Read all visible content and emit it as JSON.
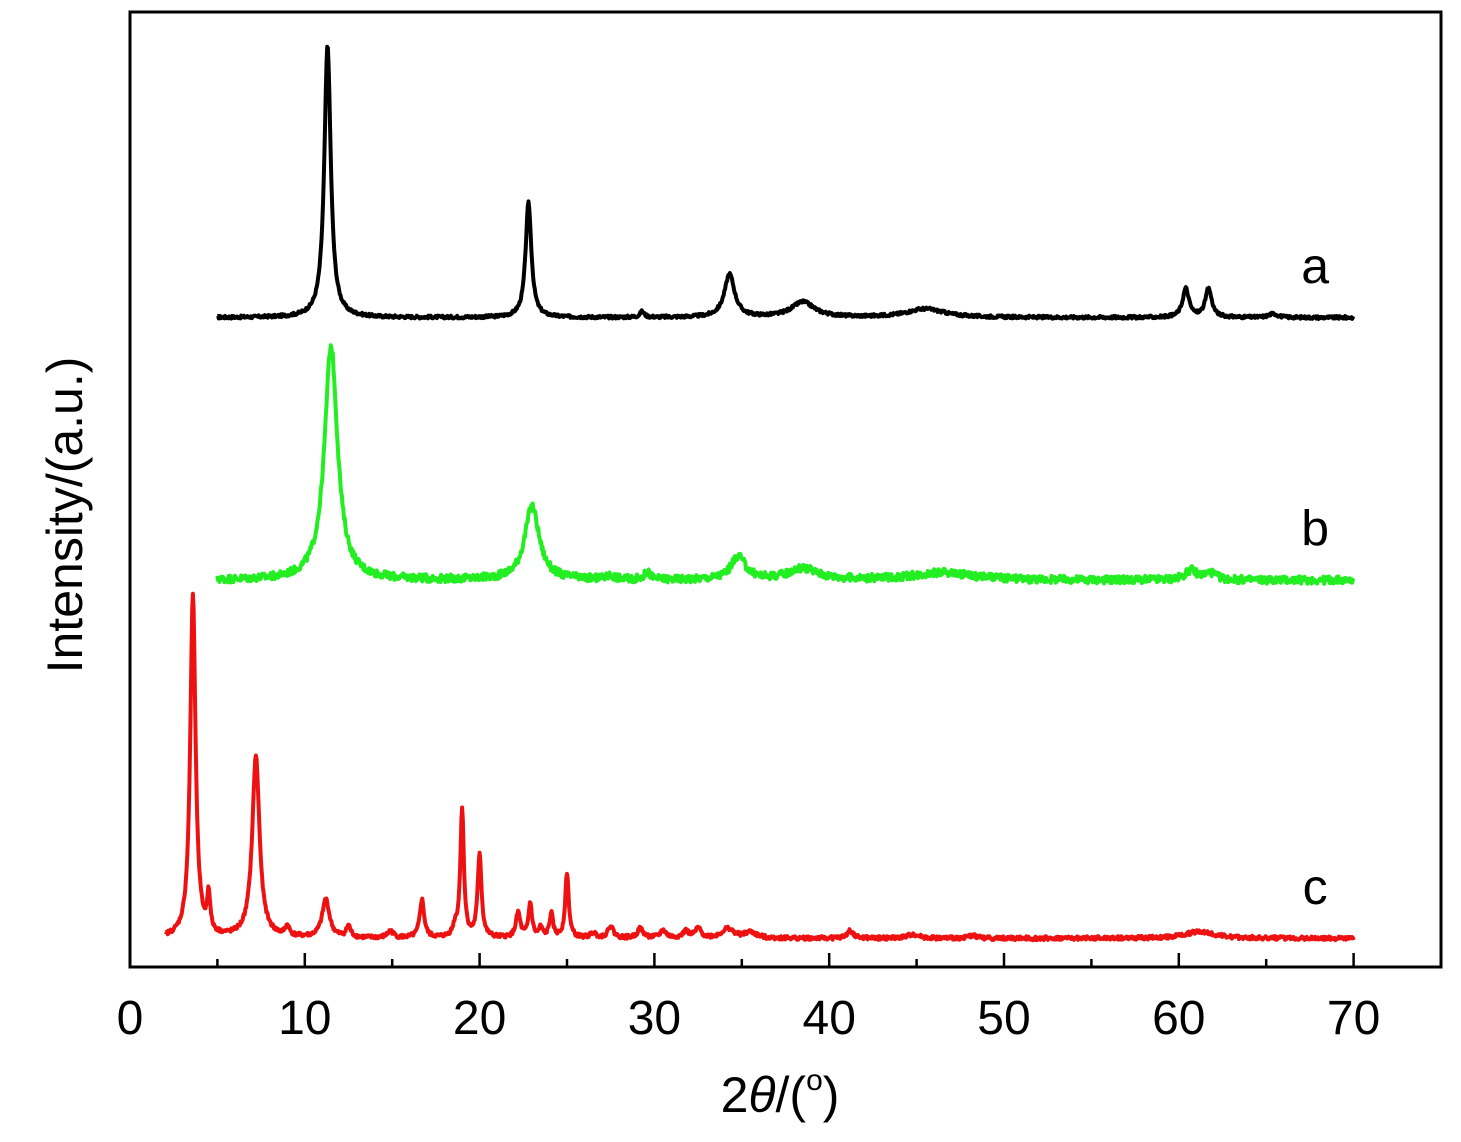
{
  "chart_data": {
    "type": "line",
    "xlabel_prefix": "2",
    "xlabel_symbol": "θ",
    "xlabel_suffix": "/(",
    "xlabel_unit": "o",
    "xlabel_close": ")",
    "ylabel": "Intensity/(a.u.)",
    "xlim": [
      0,
      75
    ],
    "x_ticks": [
      0,
      10,
      20,
      30,
      40,
      50,
      60,
      70
    ],
    "y_ticks_shown": false,
    "grid": false,
    "series": [
      {
        "name": "a",
        "color": "#000000",
        "x_range": [
          5,
          70
        ],
        "baseline": 0.68,
        "noise": 0.0015,
        "peaks": [
          {
            "x": 11.3,
            "h": 0.285,
            "w": 0.22
          },
          {
            "x": 22.8,
            "h": 0.12,
            "w": 0.2
          },
          {
            "x": 29.3,
            "h": 0.006,
            "w": 0.15
          },
          {
            "x": 34.3,
            "h": 0.045,
            "w": 0.35
          },
          {
            "x": 38.5,
            "h": 0.016,
            "w": 0.8
          },
          {
            "x": 45.5,
            "h": 0.009,
            "w": 1.3
          },
          {
            "x": 60.4,
            "h": 0.03,
            "w": 0.22
          },
          {
            "x": 61.7,
            "h": 0.03,
            "w": 0.22
          },
          {
            "x": 65.4,
            "h": 0.004,
            "w": 0.3
          }
        ]
      },
      {
        "name": "b",
        "color": "#22ee22",
        "x_range": [
          5,
          70
        ],
        "baseline": 0.405,
        "noise": 0.004,
        "peaks": [
          {
            "x": 11.5,
            "h": 0.245,
            "w": 0.45
          },
          {
            "x": 23.0,
            "h": 0.077,
            "w": 0.5
          },
          {
            "x": 27.5,
            "h": 0.004,
            "w": 0.3
          },
          {
            "x": 29.6,
            "h": 0.008,
            "w": 0.2
          },
          {
            "x": 34.8,
            "h": 0.024,
            "w": 0.5
          },
          {
            "x": 38.5,
            "h": 0.012,
            "w": 1.0
          },
          {
            "x": 46.5,
            "h": 0.008,
            "w": 2.0
          },
          {
            "x": 60.7,
            "h": 0.01,
            "w": 0.4
          },
          {
            "x": 61.8,
            "h": 0.007,
            "w": 0.4
          }
        ]
      },
      {
        "name": "c",
        "color": "#ee1111",
        "x_range": [
          2,
          70
        ],
        "baseline": 0.03,
        "noise": 0.002,
        "peaks": [
          {
            "x": 3.6,
            "h": 0.36,
            "w": 0.18
          },
          {
            "x": 4.5,
            "h": 0.04,
            "w": 0.1
          },
          {
            "x": 7.2,
            "h": 0.19,
            "w": 0.25
          },
          {
            "x": 9.0,
            "h": 0.01,
            "w": 0.15
          },
          {
            "x": 11.2,
            "h": 0.04,
            "w": 0.25
          },
          {
            "x": 12.5,
            "h": 0.012,
            "w": 0.15
          },
          {
            "x": 14.9,
            "h": 0.007,
            "w": 0.2
          },
          {
            "x": 16.7,
            "h": 0.04,
            "w": 0.15
          },
          {
            "x": 18.6,
            "h": 0.01,
            "w": 0.15
          },
          {
            "x": 19.0,
            "h": 0.135,
            "w": 0.12
          },
          {
            "x": 20.0,
            "h": 0.088,
            "w": 0.13
          },
          {
            "x": 22.2,
            "h": 0.026,
            "w": 0.15
          },
          {
            "x": 22.9,
            "h": 0.036,
            "w": 0.12
          },
          {
            "x": 23.5,
            "h": 0.01,
            "w": 0.12
          },
          {
            "x": 24.1,
            "h": 0.025,
            "w": 0.12
          },
          {
            "x": 25.0,
            "h": 0.068,
            "w": 0.12
          },
          {
            "x": 26.5,
            "h": 0.005,
            "w": 0.2
          },
          {
            "x": 27.5,
            "h": 0.013,
            "w": 0.18
          },
          {
            "x": 29.2,
            "h": 0.01,
            "w": 0.2
          },
          {
            "x": 30.5,
            "h": 0.008,
            "w": 0.2
          },
          {
            "x": 31.8,
            "h": 0.007,
            "w": 0.2
          },
          {
            "x": 32.5,
            "h": 0.01,
            "w": 0.2
          },
          {
            "x": 34.2,
            "h": 0.01,
            "w": 0.4
          },
          {
            "x": 35.5,
            "h": 0.006,
            "w": 0.4
          },
          {
            "x": 41.2,
            "h": 0.008,
            "w": 0.2
          },
          {
            "x": 44.8,
            "h": 0.004,
            "w": 0.4
          },
          {
            "x": 48.2,
            "h": 0.003,
            "w": 0.3
          },
          {
            "x": 61.2,
            "h": 0.007,
            "w": 1.0
          }
        ]
      }
    ]
  }
}
